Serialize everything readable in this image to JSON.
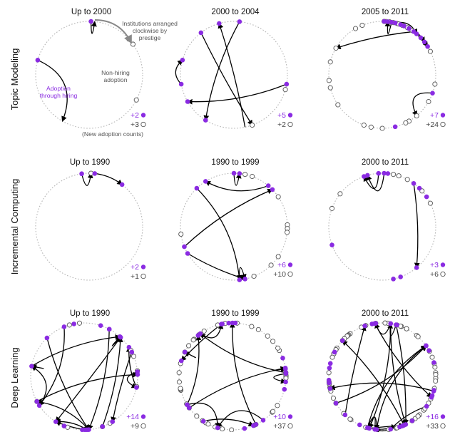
{
  "colors": {
    "hiring": "#8a2be2",
    "non_hiring": "#ffffff",
    "arrow": "#000000",
    "ring": "#b5b5b5"
  },
  "rows": [
    {
      "label": "Topic Modeling"
    },
    {
      "label": "Incremental Computing"
    },
    {
      "label": "Deep Learning"
    }
  ],
  "annotations": {
    "clockwise_1": "Institutions arranged",
    "clockwise_2": "clockwise by",
    "clockwise_3": "prestige",
    "nonhiring_1": "Non-hiring",
    "nonhiring_2": "adoption",
    "hiring_1": "Adoption",
    "hiring_2": "through hiring",
    "counts_note": "(New adoption counts)"
  },
  "panels": [
    {
      "title": "Up to 2000",
      "hiring_count": "+2",
      "nonhiring_count": "+3"
    },
    {
      "title": "2000 to 2004",
      "hiring_count": "+5",
      "nonhiring_count": "+2"
    },
    {
      "title": "2005 to 2011",
      "hiring_count": "+7",
      "nonhiring_count": "+24"
    },
    {
      "title": "Up to 1990",
      "hiring_count": "+2",
      "nonhiring_count": "+1"
    },
    {
      "title": "1990 to 1999",
      "hiring_count": "+6",
      "nonhiring_count": "+10"
    },
    {
      "title": "2000 to 2011",
      "hiring_count": "+3",
      "nonhiring_count": "+6"
    },
    {
      "title": "Up to 1990",
      "hiring_count": "+14",
      "nonhiring_count": "+9"
    },
    {
      "title": "1990 to 1999",
      "hiring_count": "+10",
      "nonhiring_count": "+37"
    },
    {
      "title": "2000 to 2011",
      "hiring_count": "+16",
      "nonhiring_count": "+33"
    }
  ]
}
